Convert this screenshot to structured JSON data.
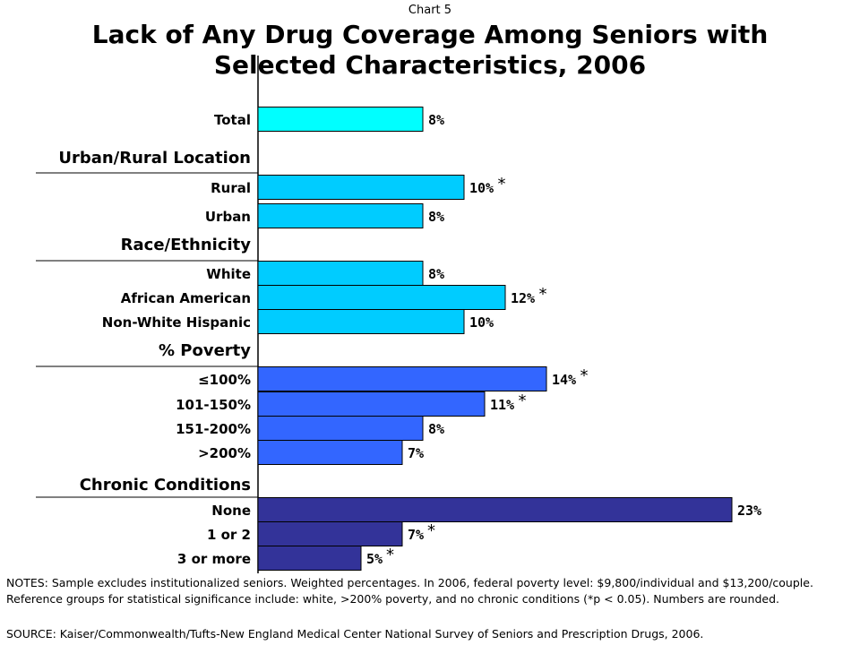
{
  "header": {
    "chart_label": "Chart 5",
    "title": "Lack of Any Drug Coverage Among Seniors with Selected Characteristics, 2006"
  },
  "footer": {
    "notes": "NOTES: Sample excludes institutionalized seniors. Weighted percentages. In 2006, federal poverty level: $9,800/individual and $13,200/couple. Reference groups for statistical significance include: white, >200% poverty, and no chronic conditions (*p < 0.05). Numbers are rounded.",
    "source": "SOURCE: Kaiser/Commonwealth/Tufts-New England Medical Center National Survey of Seniors and Prescription Drugs, 2006."
  },
  "colors": {
    "total": "#00FFFF",
    "urban_rural": "#00CCFF",
    "race": "#00CCFF",
    "poverty": "#3366FF",
    "chronic": "#333399"
  },
  "chart_data": {
    "type": "bar",
    "orientation": "horizontal",
    "title": "Lack of Any Drug Coverage Among Seniors with Selected Characteristics, 2006",
    "xlim": [
      0,
      25
    ],
    "groups": [
      {
        "heading": "",
        "color": "total",
        "items": [
          {
            "label": "Total",
            "value": 8,
            "value_label": "8%",
            "significant": false
          }
        ]
      },
      {
        "heading": "Urban/Rural Location",
        "color": "urban_rural",
        "items": [
          {
            "label": "Rural",
            "value": 10,
            "value_label": "10%",
            "significant": true
          },
          {
            "label": "Urban",
            "value": 8,
            "value_label": "8%",
            "significant": false
          }
        ]
      },
      {
        "heading": "Race/Ethnicity",
        "color": "race",
        "items": [
          {
            "label": "White",
            "value": 8,
            "value_label": "8%",
            "significant": false
          },
          {
            "label": "African American",
            "value": 12,
            "value_label": "12%",
            "significant": true
          },
          {
            "label": "Non-White Hispanic",
            "value": 10,
            "value_label": "10%",
            "significant": false
          }
        ]
      },
      {
        "heading": "% Poverty",
        "color": "poverty",
        "items": [
          {
            "label": "≤100%",
            "value": 14,
            "value_label": "14%",
            "significant": true
          },
          {
            "label": "101-150%",
            "value": 11,
            "value_label": "11%",
            "significant": true
          },
          {
            "label": "151-200%",
            "value": 8,
            "value_label": "8%",
            "significant": false
          },
          {
            "label": ">200%",
            "value": 7,
            "value_label": "7%",
            "significant": false
          }
        ]
      },
      {
        "heading": "Chronic Conditions",
        "color": "chronic",
        "items": [
          {
            "label": "None",
            "value": 23,
            "value_label": "23%",
            "significant": false
          },
          {
            "label": "1 or 2",
            "value": 7,
            "value_label": "7%",
            "significant": true
          },
          {
            "label": "3 or more",
            "value": 5,
            "value_label": "5%",
            "significant": true
          }
        ]
      }
    ],
    "significance_marker": "*"
  }
}
